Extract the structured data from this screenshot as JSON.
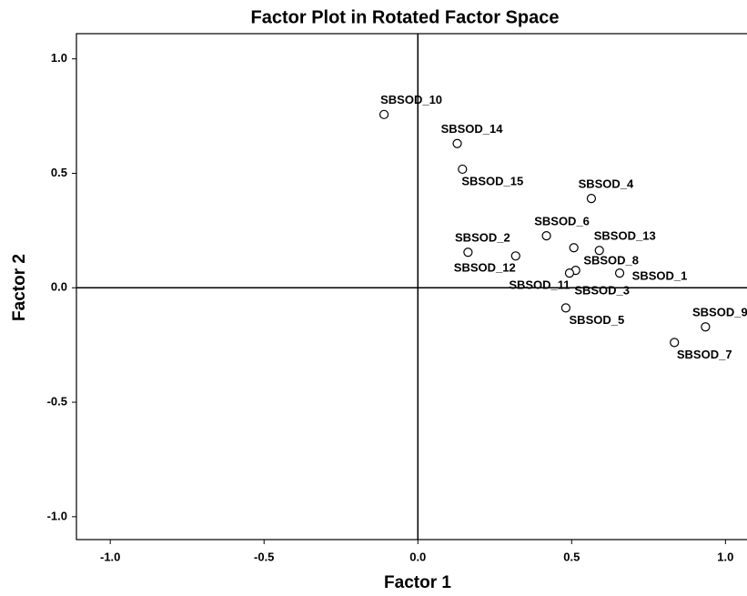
{
  "chart_data": {
    "type": "scatter",
    "title": "Factor Plot in Rotated Factor Space",
    "x_label": "Factor 1",
    "y_label": "Factor 2",
    "points": [
      {
        "label": "SBSOD_1",
        "x": 0.656,
        "y": 0.064
      },
      {
        "label": "SBSOD_2",
        "x": 0.163,
        "y": 0.155
      },
      {
        "label": "SBSOD_3",
        "x": 0.513,
        "y": 0.076
      },
      {
        "label": "SBSOD_4",
        "x": 0.564,
        "y": 0.39
      },
      {
        "label": "SBSOD_5",
        "x": 0.481,
        "y": -0.088
      },
      {
        "label": "SBSOD_6",
        "x": 0.418,
        "y": 0.227
      },
      {
        "label": "SBSOD_7",
        "x": 0.834,
        "y": -0.239
      },
      {
        "label": "SBSOD_8",
        "x": 0.507,
        "y": 0.175
      },
      {
        "label": "SBSOD_9",
        "x": 0.935,
        "y": -0.171
      },
      {
        "label": "SBSOD_10",
        "x": -0.11,
        "y": 0.757
      },
      {
        "label": "SBSOD_11",
        "x": 0.493,
        "y": 0.064
      },
      {
        "label": "SBSOD_12",
        "x": 0.318,
        "y": 0.139
      },
      {
        "label": "SBSOD_13",
        "x": 0.59,
        "y": 0.163
      },
      {
        "label": "SBSOD_14",
        "x": 0.128,
        "y": 0.63
      },
      {
        "label": "SBSOD_15",
        "x": 0.145,
        "y": 0.518
      }
    ],
    "xlim": [
      -1.11,
      1.07
    ],
    "ylim": [
      -1.1,
      1.11
    ],
    "xticks": [
      {
        "value": -1,
        "label": "-1.0"
      },
      {
        "value": -0.5,
        "label": "-0.5"
      },
      {
        "value": 0,
        "label": "0.0"
      },
      {
        "value": 0.5,
        "label": "0.5"
      },
      {
        "value": 1,
        "label": "1.0"
      }
    ],
    "yticks": [
      {
        "value": -1,
        "label": "-1.0"
      },
      {
        "value": -0.5,
        "label": "-0.5"
      },
      {
        "value": 0,
        "label": "0.0"
      },
      {
        "value": 0.5,
        "label": "0.5"
      },
      {
        "value": 1,
        "label": "1.0"
      }
    ],
    "reference_lines": true
  }
}
